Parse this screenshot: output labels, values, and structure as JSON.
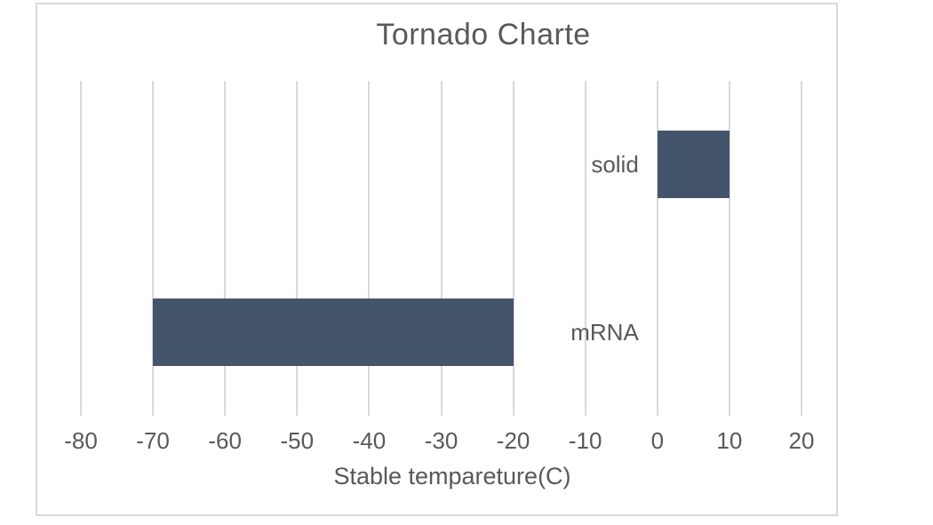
{
  "chart_data": {
    "type": "bar",
    "orientation": "horizontal",
    "title": "Tornado Charte",
    "xlabel": "Stable tempareture(C)",
    "ylabel": "",
    "categories": [
      "solid",
      "mRNA"
    ],
    "bars": [
      {
        "label": "solid",
        "from": 0,
        "to": 10
      },
      {
        "label": "mRNA",
        "from": -70,
        "to": -20
      }
    ],
    "xlim": [
      -80,
      20
    ],
    "xticks": [
      -80,
      -70,
      -60,
      -50,
      -40,
      -30,
      -20,
      -10,
      0,
      10,
      20
    ],
    "grid": "vertical-major",
    "legend": "none",
    "colors": {
      "bar": "#44546B",
      "gridline": "#D9D9D9",
      "frame_border": "#D9D9D9",
      "text": "#595959",
      "background": "#FFFFFF"
    }
  }
}
